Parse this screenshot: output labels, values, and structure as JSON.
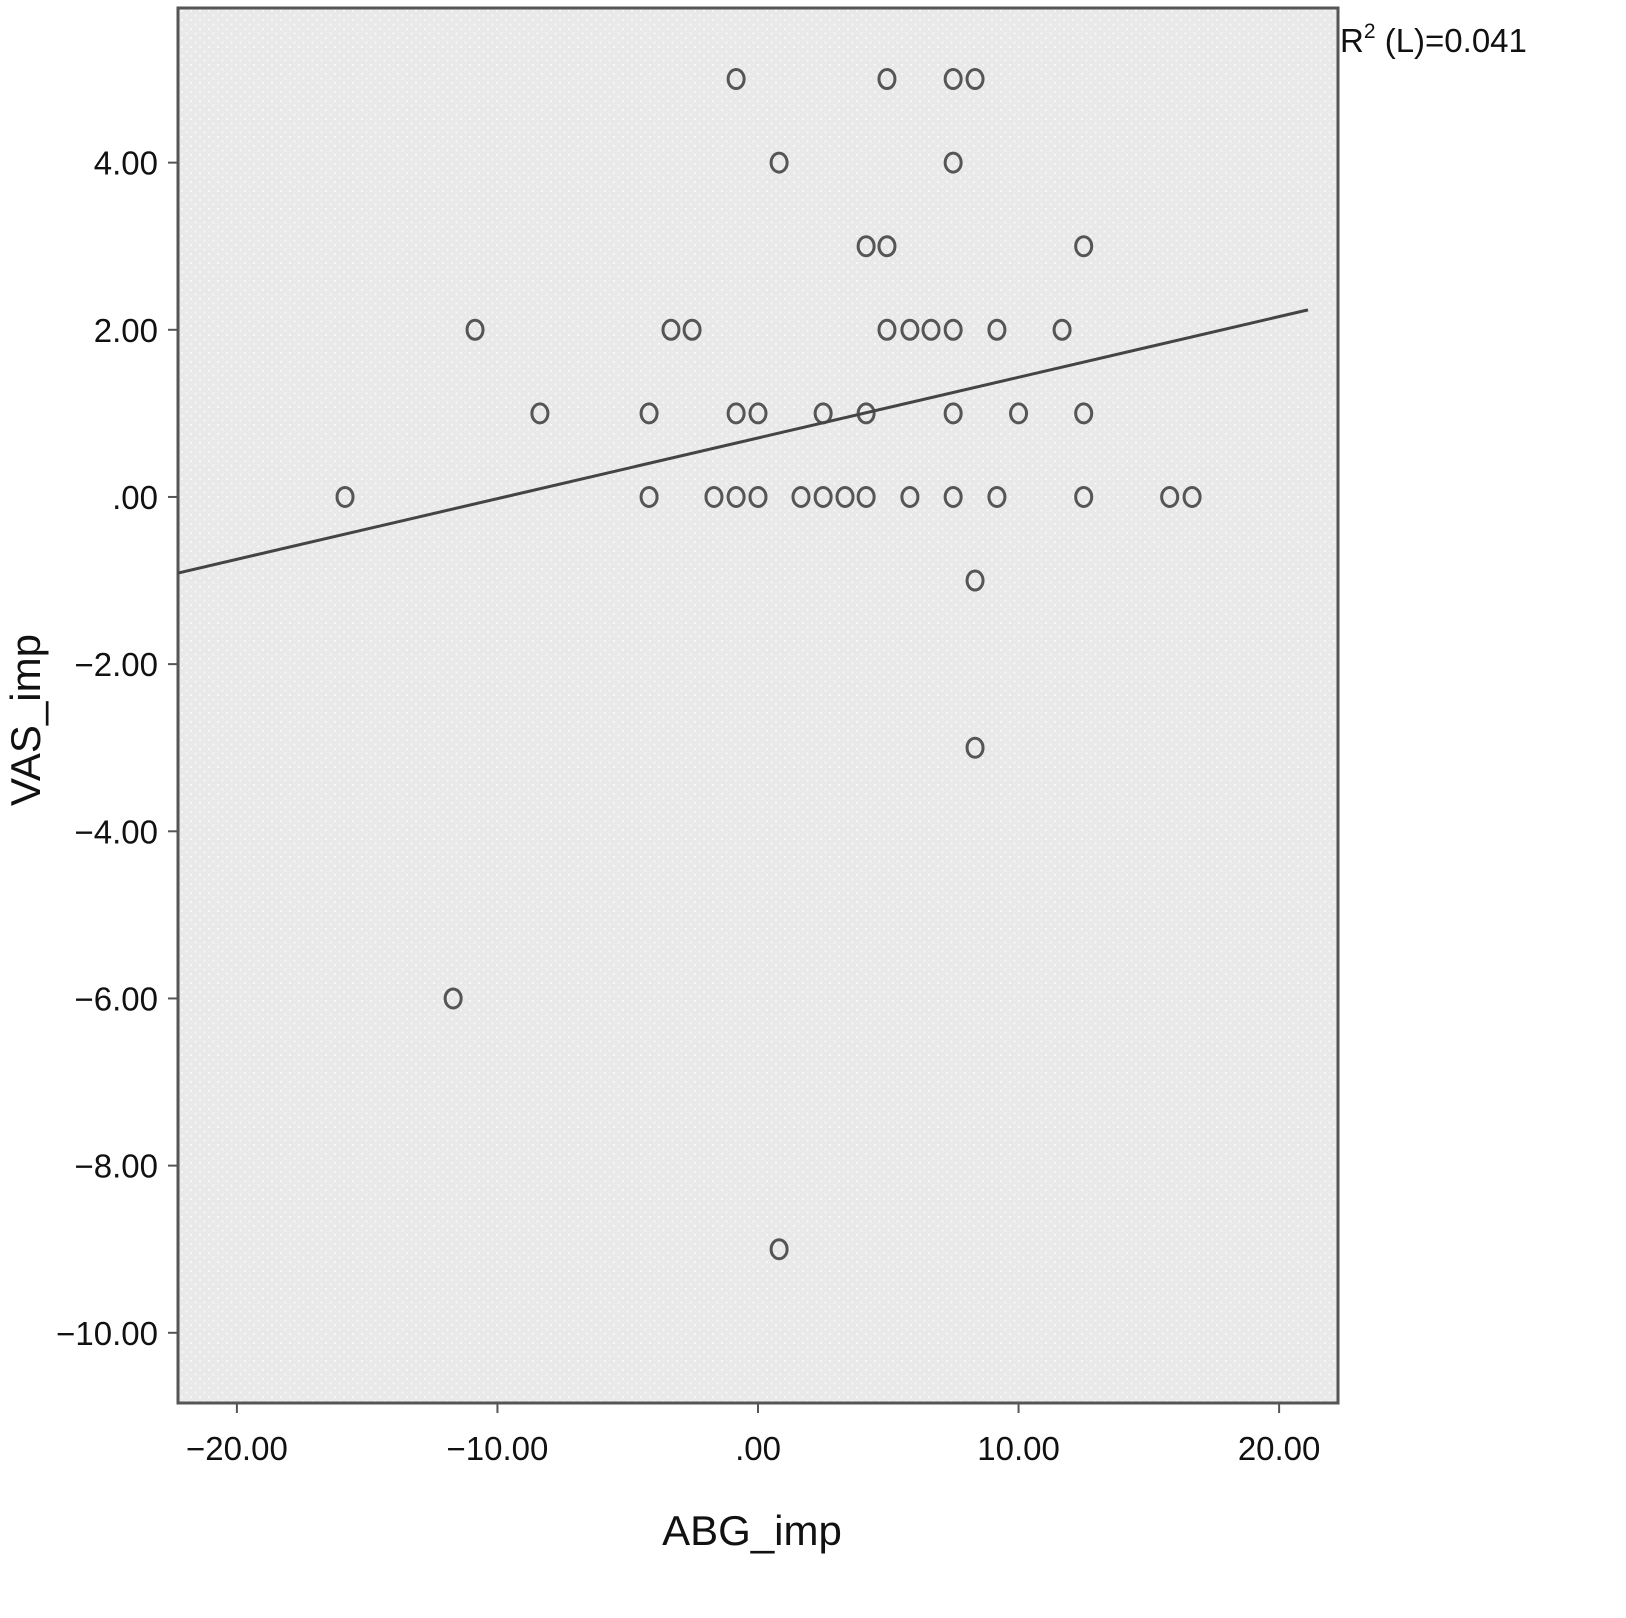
{
  "chart_data": {
    "type": "scatter",
    "title": "",
    "xlabel": "ABG_imp",
    "ylabel": "VAS_imp",
    "xlim": [
      -22.26,
      22.26
    ],
    "ylim": [
      -10.84,
      5.85
    ],
    "xticks": [
      -20,
      -10,
      0,
      10,
      20
    ],
    "xtick_labels": [
      "−20.00",
      "−10.00",
      ".00",
      "10.00",
      "20.00"
    ],
    "yticks": [
      4,
      2,
      0,
      -2,
      -4,
      -6,
      -8,
      -10
    ],
    "ytick_labels": [
      "4.00",
      "2.00",
      ".00",
      "−2.00",
      "−4.00",
      "−6.00",
      "−8.00",
      "−10.00"
    ],
    "grid": false,
    "background": "#ececec",
    "marker": "open-circle",
    "marker_color": "#555555",
    "annotation": {
      "prefix": "R",
      "sup": "2",
      "suffix": " (L)=0.041"
    },
    "fit_line": {
      "type": "linear",
      "slope": 0.0726,
      "intercept": 0.706,
      "color": "#444444"
    },
    "points": [
      [
        -0.84,
        5
      ],
      [
        4.95,
        5
      ],
      [
        7.49,
        5
      ],
      [
        8.33,
        5
      ],
      [
        0.81,
        4
      ],
      [
        7.49,
        4
      ],
      [
        4.15,
        3
      ],
      [
        4.95,
        3
      ],
      [
        12.5,
        3
      ],
      [
        -10.86,
        2
      ],
      [
        -3.34,
        2
      ],
      [
        -2.53,
        2
      ],
      [
        4.95,
        2
      ],
      [
        5.83,
        2
      ],
      [
        6.64,
        2
      ],
      [
        7.49,
        2
      ],
      [
        9.17,
        2
      ],
      [
        11.67,
        2
      ],
      [
        -8.37,
        1
      ],
      [
        -4.18,
        1
      ],
      [
        -0.84,
        1
      ],
      [
        0,
        1
      ],
      [
        2.5,
        1
      ],
      [
        4.15,
        1
      ],
      [
        7.49,
        1
      ],
      [
        10.0,
        1
      ],
      [
        12.5,
        1
      ],
      [
        -15.85,
        0
      ],
      [
        -4.18,
        0
      ],
      [
        -1.69,
        0
      ],
      [
        -0.84,
        0
      ],
      [
        0,
        0
      ],
      [
        1.65,
        0
      ],
      [
        2.5,
        0
      ],
      [
        3.34,
        0
      ],
      [
        4.15,
        0
      ],
      [
        5.83,
        0
      ],
      [
        7.49,
        0
      ],
      [
        9.17,
        0
      ],
      [
        12.5,
        0
      ],
      [
        15.8,
        0
      ],
      [
        16.66,
        0
      ],
      [
        8.33,
        -1
      ],
      [
        8.33,
        -3
      ],
      [
        -11.7,
        -6
      ],
      [
        0.81,
        -9
      ]
    ]
  }
}
